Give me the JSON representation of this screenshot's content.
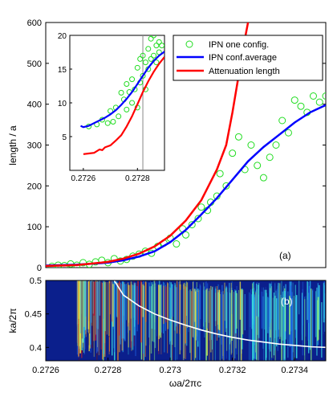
{
  "chart_data": [
    {
      "panel_label": "(a)",
      "type": "line",
      "ylabel": "length / a",
      "xlim": [
        0.2726,
        0.2735
      ],
      "ylim": [
        0,
        600
      ],
      "yticks": [
        "0",
        "100",
        "200",
        "300",
        "400",
        "500",
        "600"
      ],
      "legend_position": "top-right",
      "series": [
        {
          "name": "IPN one config.",
          "kind": "scatter",
          "color": "#22dd22",
          "x": [
            0.27262,
            0.27264,
            0.27266,
            0.27268,
            0.2727,
            0.27272,
            0.27274,
            0.27276,
            0.27278,
            0.2728,
            0.27282,
            0.27284,
            0.27286,
            0.27288,
            0.2729,
            0.27292,
            0.27294,
            0.27296,
            0.27298,
            0.273,
            0.27302,
            0.27304,
            0.27305,
            0.27307,
            0.27309,
            0.2731,
            0.27312,
            0.27313,
            0.27315,
            0.27316,
            0.27318,
            0.2732,
            0.27322,
            0.27324,
            0.27326,
            0.27328,
            0.2733,
            0.27332,
            0.27334,
            0.27336,
            0.27338,
            0.2734,
            0.27342,
            0.27344,
            0.27346,
            0.27348,
            0.2735
          ],
          "y": [
            3,
            6,
            5,
            9,
            6,
            12,
            8,
            14,
            18,
            12,
            22,
            16,
            20,
            28,
            33,
            40,
            35,
            52,
            60,
            72,
            58,
            95,
            80,
            105,
            120,
            148,
            140,
            160,
            175,
            230,
            200,
            280,
            320,
            240,
            300,
            250,
            220,
            270,
            300,
            360,
            330,
            410,
            395,
            380,
            420,
            405,
            420
          ]
        },
        {
          "name": "IPN conf.average",
          "kind": "line",
          "color": "#0000ff",
          "x": [
            0.2726,
            0.2727,
            0.2728,
            0.27285,
            0.2729,
            0.27295,
            0.273,
            0.27305,
            0.2731,
            0.27315,
            0.2732,
            0.27325,
            0.2733,
            0.27335,
            0.2734,
            0.27345,
            0.2735
          ],
          "y": [
            5,
            7,
            12,
            18,
            27,
            40,
            62,
            92,
            130,
            170,
            215,
            260,
            295,
            325,
            355,
            380,
            398
          ]
        },
        {
          "name": "Attenuation length",
          "kind": "line",
          "color": "#ff0000",
          "x": [
            0.2726,
            0.2727,
            0.2728,
            0.27285,
            0.2729,
            0.27295,
            0.273,
            0.27305,
            0.2731,
            0.27315,
            0.27318,
            0.2732,
            0.27322,
            0.27324,
            0.27325
          ],
          "y": [
            4,
            6,
            14,
            22,
            34,
            52,
            78,
            115,
            165,
            240,
            300,
            380,
            470,
            560,
            600
          ]
        }
      ],
      "inset": {
        "xlim": [
          0.27255,
          0.2729
        ],
        "ylim": [
          0,
          20
        ],
        "xticks": [
          "0.2726",
          "0.2728"
        ],
        "yticks": [
          "5",
          "10",
          "15",
          "20"
        ],
        "vline_x": 0.27282,
        "scatter": {
          "x": [
            0.27262,
            0.27265,
            0.27267,
            0.27269,
            0.2727,
            0.27271,
            0.27272,
            0.27273,
            0.27274,
            0.27275,
            0.27276,
            0.27276,
            0.27277,
            0.27278,
            0.27278,
            0.27279,
            0.2728,
            0.2728,
            0.27281,
            0.27281,
            0.27282,
            0.27282,
            0.27283,
            0.27283,
            0.27284,
            0.27284,
            0.27285,
            0.27285,
            0.27286,
            0.27286,
            0.27287,
            0.27287,
            0.27288,
            0.27288,
            0.27289
          ],
          "y": [
            6.5,
            6.8,
            7.5,
            7.0,
            8.8,
            7.2,
            9.3,
            8.0,
            11.5,
            10.5,
            12.8,
            9.0,
            11.6,
            13.5,
            10.0,
            12.0,
            15.2,
            9.3,
            16.5,
            13.0,
            17.0,
            14.0,
            16.0,
            12.0,
            18.0,
            15.0,
            19.5,
            16.5,
            17.0,
            20.0,
            18.5,
            16.0,
            19.0,
            17.5,
            18.5
          ]
        },
        "average": {
          "x": [
            0.27259,
            0.2726,
            0.27262,
            0.27264,
            0.27266,
            0.27268,
            0.2727,
            0.27272,
            0.27274,
            0.27276,
            0.27278,
            0.2728,
            0.27282,
            0.27284,
            0.27286,
            0.27288,
            0.2729
          ],
          "y": [
            6.6,
            6.4,
            6.6,
            7.0,
            7.4,
            7.8,
            8.3,
            8.9,
            9.7,
            10.6,
            11.6,
            12.8,
            14.0,
            15.2,
            16.2,
            17.0,
            17.6
          ]
        },
        "attenuation": {
          "x": [
            0.2726,
            0.27262,
            0.27264,
            0.27266,
            0.27267,
            0.27268,
            0.2727,
            0.27272,
            0.27274,
            0.27276,
            0.27278,
            0.2728,
            0.27282,
            0.27284,
            0.27286,
            0.27288,
            0.2729
          ],
          "y": [
            2.4,
            2.5,
            2.6,
            3.1,
            3.0,
            3.4,
            3.7,
            4.4,
            5.2,
            6.5,
            8.0,
            9.8,
            11.6,
            13.2,
            14.6,
            15.8,
            16.8
          ]
        }
      }
    },
    {
      "panel_label": "(b)",
      "type": "heatmap",
      "xlabel": "ωa/2πc",
      "ylabel": "ka/2π",
      "xlim": [
        0.2726,
        0.2735
      ],
      "ylim": [
        0.38,
        0.5
      ],
      "xticks": [
        "0.2726",
        "0.2728",
        "0.273",
        "0.2732",
        "0.2734"
      ],
      "yticks": [
        "0.4",
        "0.45",
        "0.5"
      ],
      "curve_color": "#ffffff",
      "curve": {
        "x": [
          0.27282,
          0.27285,
          0.2729,
          0.27295,
          0.273,
          0.27305,
          0.2731,
          0.27315,
          0.2732,
          0.27325,
          0.2733,
          0.27335,
          0.2734,
          0.27345,
          0.2735
        ],
        "y": [
          0.5,
          0.478,
          0.462,
          0.45,
          0.441,
          0.433,
          0.426,
          0.42,
          0.415,
          0.411,
          0.408,
          0.405,
          0.403,
          0.401,
          0.4
        ]
      }
    }
  ]
}
